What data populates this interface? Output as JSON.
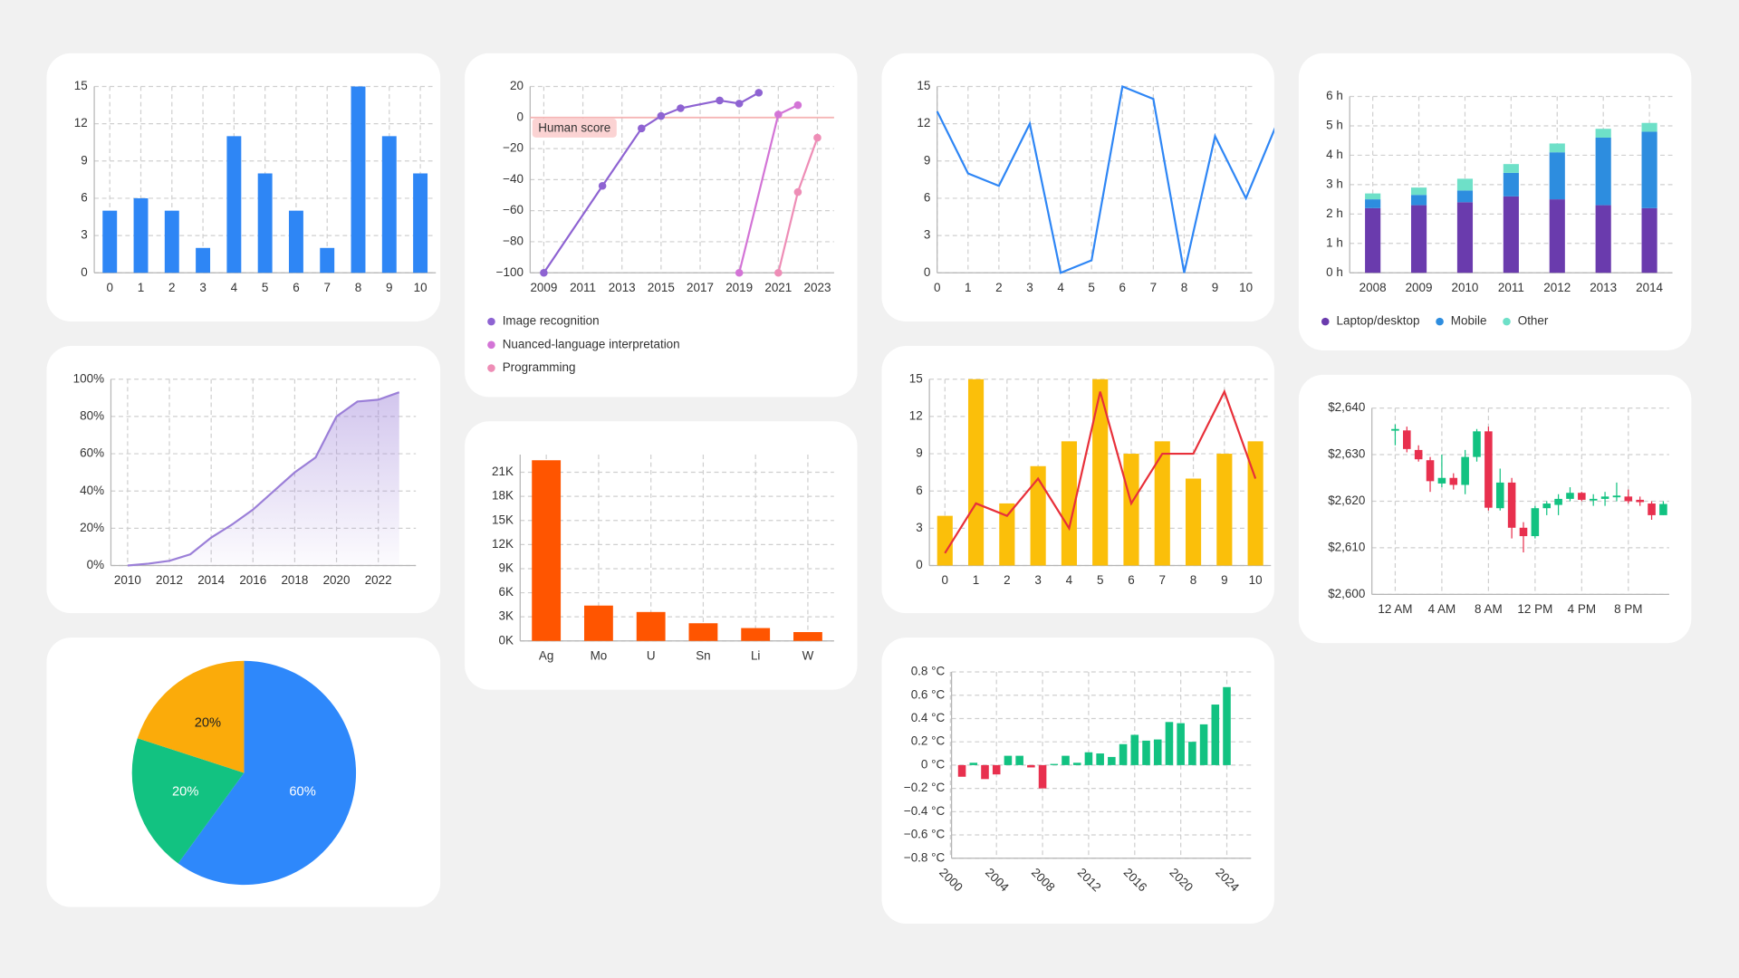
{
  "chart_data": [
    {
      "type": "bar",
      "categories": [
        "0",
        "1",
        "2",
        "3",
        "4",
        "5",
        "6",
        "7",
        "8",
        "9",
        "10"
      ],
      "values": [
        5,
        6,
        5,
        2,
        11,
        8,
        5,
        2,
        15,
        11,
        8
      ],
      "color": "#2e86f5",
      "ylim": [
        0,
        15
      ],
      "yticks": [
        0,
        3,
        6,
        9,
        12,
        15
      ],
      "grid": true
    },
    {
      "type": "area",
      "x": [
        2010,
        2011,
        2012,
        2013,
        2014,
        2015,
        2016,
        2017,
        2018,
        2019,
        2020,
        2021,
        2022,
        2023
      ],
      "values": [
        0,
        1,
        2.5,
        6,
        15,
        22,
        30,
        40,
        50,
        58,
        80,
        88,
        89,
        93
      ],
      "color": "#9b7fd8",
      "xlim": [
        2009.2,
        2023.8
      ],
      "xticks": [
        2010,
        2012,
        2014,
        2016,
        2018,
        2020,
        2022
      ],
      "ylim": [
        0,
        100
      ],
      "yticks": [
        {
          "value": 0,
          "label": "0%"
        },
        {
          "value": 20,
          "label": "20%"
        },
        {
          "value": 40,
          "label": "40%"
        },
        {
          "value": 60,
          "label": "60%"
        },
        {
          "value": 80,
          "label": "80%"
        },
        {
          "value": 100,
          "label": "100%"
        }
      ],
      "grid": true
    },
    {
      "type": "pie",
      "values": [
        60,
        20,
        20
      ],
      "value_labels": [
        "60%",
        "20%",
        "20%"
      ],
      "colors": [
        "#2e88fb",
        "#12c281",
        "#fbab0a"
      ]
    },
    {
      "type": "line",
      "series": [
        {
          "name": "Image recognition",
          "color": "#8e63d2",
          "x": [
            2009,
            2012,
            2014,
            2015,
            2016,
            2018,
            2019,
            2020
          ],
          "values": [
            -100,
            -44,
            -7,
            1,
            6,
            11,
            9,
            16
          ]
        },
        {
          "name": "Nuanced-language interpretation",
          "color": "#d374d6",
          "x": [
            2019,
            2021,
            2022
          ],
          "values": [
            -100,
            2,
            8
          ]
        },
        {
          "name": "Programming",
          "color": "#ee8db6",
          "x": [
            2021,
            2022,
            2023
          ],
          "values": [
            -100,
            -48,
            -13
          ]
        }
      ],
      "markers": true,
      "annotations": [
        {
          "text": "Human score",
          "y": 0
        }
      ],
      "xlim": [
        2008.3,
        2023.85
      ],
      "xticks": [
        2009,
        2011,
        2013,
        2015,
        2017,
        2019,
        2021,
        2023
      ],
      "ylim": [
        -100,
        20
      ],
      "yticks": [
        20,
        0,
        {
          "value": -20,
          "label": "−20"
        },
        {
          "value": -40,
          "label": "−40"
        },
        {
          "value": -60,
          "label": "−60"
        },
        {
          "value": -80,
          "label": "−80"
        },
        {
          "value": -100,
          "label": "−100"
        }
      ],
      "grid": true,
      "legend": "bottom-left"
    },
    {
      "type": "bar",
      "categories": [
        "Ag",
        "Mo",
        "U",
        "Sn",
        "Li",
        "W"
      ],
      "values": [
        22500,
        4400,
        3600,
        2200,
        1600,
        1100
      ],
      "color": "#ff5500",
      "ylim": [
        0,
        23200
      ],
      "yticks": [
        {
          "value": 0,
          "label": "0K"
        },
        {
          "value": 3000,
          "label": "3K"
        },
        {
          "value": 6000,
          "label": "6K"
        },
        {
          "value": 9000,
          "label": "9K"
        },
        {
          "value": 12000,
          "label": "12K"
        },
        {
          "value": 15000,
          "label": "15K"
        },
        {
          "value": 18000,
          "label": "18K"
        },
        {
          "value": 21000,
          "label": "21K"
        }
      ],
      "grid": true
    },
    {
      "type": "line",
      "x": [
        0,
        1,
        2,
        3,
        4,
        5,
        6,
        7,
        8,
        9,
        10,
        11
      ],
      "values": [
        13,
        8,
        7,
        12,
        0,
        1,
        15,
        14,
        0,
        11,
        6,
        12
      ],
      "color": "#2e86f5",
      "xlim": [
        0,
        10.2
      ],
      "xticks": [
        0,
        1,
        2,
        3,
        4,
        5,
        6,
        7,
        8,
        9,
        10
      ],
      "ylim": [
        0,
        15
      ],
      "yticks": [
        0,
        3,
        6,
        9,
        12,
        15
      ],
      "grid": true
    },
    {
      "type": "combo",
      "categories": [
        "0",
        "1",
        "2",
        "3",
        "4",
        "5",
        "6",
        "7",
        "8",
        "9",
        "10"
      ],
      "series": [
        {
          "type": "bar",
          "color": "#fbbf0a",
          "values": [
            4,
            15,
            5,
            8,
            10,
            15,
            9,
            10,
            7,
            9,
            10
          ]
        },
        {
          "type": "line",
          "color": "#e8303a",
          "values": [
            1,
            5,
            4,
            7,
            3,
            14,
            5,
            9,
            9,
            14,
            7
          ]
        }
      ],
      "ylim": [
        0,
        15
      ],
      "yticks": [
        0,
        3,
        6,
        9,
        12,
        15
      ],
      "grid": true
    },
    {
      "type": "bar",
      "x": [
        2001,
        2002,
        2003,
        2004,
        2005,
        2006,
        2007,
        2008,
        2009,
        2010,
        2011,
        2012,
        2013,
        2014,
        2015,
        2016,
        2017,
        2018,
        2019,
        2020,
        2021,
        2022,
        2023,
        2024
      ],
      "values": [
        -0.1,
        0.02,
        -0.12,
        -0.08,
        0.08,
        0.08,
        -0.02,
        -0.2,
        0.01,
        0.08,
        0.02,
        0.11,
        0.1,
        0.07,
        0.18,
        0.26,
        0.21,
        0.22,
        0.37,
        0.36,
        0.2,
        0.35,
        0.52,
        0.67
      ],
      "color": "#12c281",
      "negative_color": "#e8304e",
      "xlim": [
        2000.1,
        2026.1
      ],
      "xticks": [
        2000,
        2004,
        2008,
        2012,
        2016,
        2020,
        2024
      ],
      "xtick_rotation": 45,
      "ylim": [
        -0.8,
        0.8
      ],
      "yticks": [
        {
          "value": -0.8,
          "label": "−0.8 °C"
        },
        {
          "value": -0.6,
          "label": "−0.6 °C"
        },
        {
          "value": -0.4,
          "label": "−0.4 °C"
        },
        {
          "value": -0.2,
          "label": "−0.2 °C"
        },
        {
          "value": 0,
          "label": "0 °C"
        },
        {
          "value": 0.2,
          "label": "0.2 °C"
        },
        {
          "value": 0.4,
          "label": "0.4 °C"
        },
        {
          "value": 0.6,
          "label": "0.6 °C"
        },
        {
          "value": 0.8,
          "label": "0.8 °C"
        }
      ],
      "grid": true
    },
    {
      "type": "bar",
      "stacked": true,
      "categories": [
        "2008",
        "2009",
        "2010",
        "2011",
        "2012",
        "2013",
        "2014"
      ],
      "series": [
        {
          "name": "Laptop/desktop",
          "color": "#6a3bad",
          "values": [
            2.2,
            2.3,
            2.4,
            2.6,
            2.5,
            2.3,
            2.2
          ]
        },
        {
          "name": "Mobile",
          "color": "#2d8ddf",
          "values": [
            0.3,
            0.35,
            0.4,
            0.8,
            1.6,
            2.3,
            2.6
          ]
        },
        {
          "name": "Other",
          "color": "#6ee0c8",
          "values": [
            0.2,
            0.25,
            0.4,
            0.3,
            0.3,
            0.3,
            0.3
          ]
        }
      ],
      "ylim": [
        0,
        6
      ],
      "yticks": [
        {
          "value": 0,
          "label": "0 h"
        },
        {
          "value": 1,
          "label": "1 h"
        },
        {
          "value": 2,
          "label": "2 h"
        },
        {
          "value": 3,
          "label": "3 h"
        },
        {
          "value": 4,
          "label": "4 h"
        },
        {
          "value": 5,
          "label": "5 h"
        },
        {
          "value": 6,
          "label": "6 h"
        }
      ],
      "grid": true,
      "legend": "bottom-left"
    },
    {
      "type": "candlestick",
      "x": [
        0,
        1,
        2,
        3,
        4,
        5,
        6,
        7,
        8,
        9,
        10,
        11,
        12,
        13,
        14,
        15,
        16,
        17,
        18,
        19,
        20,
        21,
        22,
        23
      ],
      "open": [
        2635.2,
        2635.2,
        2631,
        2628.8,
        2623.8,
        2625,
        2623.5,
        2629.5,
        2635,
        2618.5,
        2624,
        2614.3,
        2612.5,
        2618.5,
        2619.2,
        2620.5,
        2621.8,
        2620.2,
        2620.5,
        2621,
        2621,
        2620.3,
        2619.5,
        2617
      ],
      "high": [
        2636.5,
        2636,
        2632,
        2629.5,
        2630,
        2626,
        2631,
        2635.5,
        2636,
        2627,
        2625,
        2615.5,
        2619,
        2620,
        2621.5,
        2623,
        2622,
        2621.5,
        2622,
        2624,
        2622.5,
        2621,
        2620,
        2620
      ],
      "low": [
        2632,
        2630.5,
        2628.5,
        2622,
        2623,
        2622.5,
        2621.5,
        2628.5,
        2618,
        2618,
        2612,
        2609,
        2612,
        2617,
        2617,
        2620,
        2620,
        2619,
        2619,
        2620,
        2619.5,
        2619,
        2616,
        2617
      ],
      "close": [
        2635.5,
        2631.2,
        2629,
        2624.3,
        2625,
        2623.5,
        2629.5,
        2635,
        2618.6,
        2624,
        2614.3,
        2612.5,
        2618.5,
        2619.5,
        2620.5,
        2621.8,
        2620.3,
        2620.5,
        2621,
        2621.2,
        2620,
        2619.8,
        2617,
        2619.4
      ],
      "up_color": "#12c281",
      "down_color": "#e8304e",
      "xlim": [
        -2,
        23.5
      ],
      "xticks": [
        {
          "value": 0,
          "label": "12 AM"
        },
        {
          "value": 4,
          "label": "4 AM"
        },
        {
          "value": 8,
          "label": "8 AM"
        },
        {
          "value": 12,
          "label": "12 PM"
        },
        {
          "value": 16,
          "label": "4 PM"
        },
        {
          "value": 20,
          "label": "8 PM"
        }
      ],
      "ylim": [
        2600,
        2640
      ],
      "yticks": [
        {
          "value": 2600,
          "label": "$2,600"
        },
        {
          "value": 2610,
          "label": "$2,610"
        },
        {
          "value": 2620,
          "label": "$2,620"
        },
        {
          "value": 2630,
          "label": "$2,630"
        },
        {
          "value": 2640,
          "label": "$2,640"
        }
      ],
      "grid": true
    }
  ]
}
